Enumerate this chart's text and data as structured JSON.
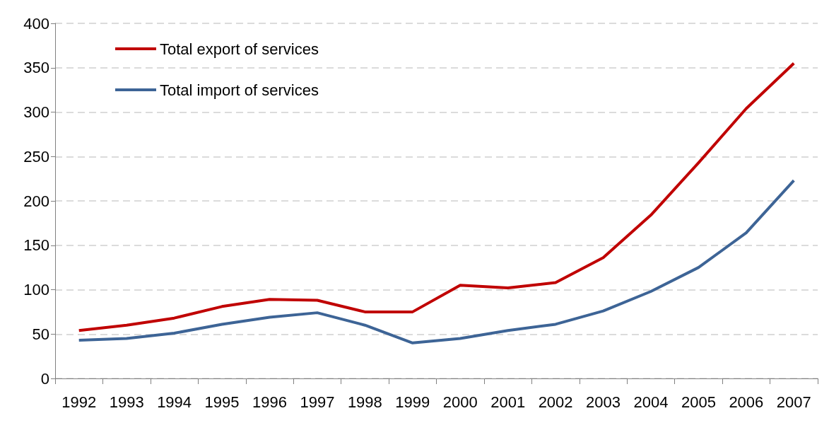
{
  "chart_data": {
    "type": "line",
    "categories": [
      "1992",
      "1993",
      "1994",
      "1995",
      "1996",
      "1997",
      "1998",
      "1999",
      "2000",
      "2001",
      "2002",
      "2003",
      "2004",
      "2005",
      "2006",
      "2007"
    ],
    "series": [
      {
        "name": "Total export of services",
        "color": "#c00000",
        "values": [
          54,
          60,
          68,
          81,
          89,
          88,
          75,
          75,
          105,
          102,
          108,
          136,
          184,
          243,
          304,
          355
        ]
      },
      {
        "name": "Total import of services",
        "color": "#3d6496",
        "values": [
          43,
          45,
          51,
          61,
          69,
          74,
          60,
          40,
          45,
          54,
          61,
          76,
          98,
          125,
          164,
          223
        ]
      }
    ],
    "ylim": [
      0,
      400
    ],
    "yticks": [
      0,
      50,
      100,
      150,
      200,
      250,
      300,
      350,
      400
    ],
    "grid": "y",
    "legend": "top left",
    "marker": "none",
    "line_style": "solid"
  }
}
